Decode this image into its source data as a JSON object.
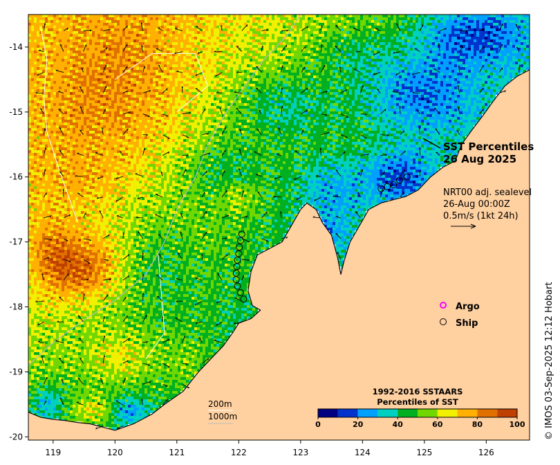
{
  "chart_data": {
    "type": "heatmap",
    "title": "SST Percentiles",
    "date": "26 Aug 2025",
    "xlim": [
      118.6,
      126.7
    ],
    "ylim": [
      -20.05,
      -13.5
    ],
    "x_ticks": [
      119,
      120,
      121,
      122,
      123,
      124,
      125,
      126
    ],
    "y_ticks": [
      -14,
      -15,
      -16,
      -17,
      -18,
      -19,
      -20
    ],
    "current_info": [
      "NRT00 adj. sealevel",
      "26-Aug 00:00Z",
      "0.5m/s (1kt 24h)"
    ],
    "legend": [
      {
        "label": "Argo",
        "symbol": "circle",
        "color": "#ff00ff"
      },
      {
        "label": "Ship",
        "symbol": "circle",
        "color": "#000000"
      }
    ],
    "depth_contours": [
      "200m",
      "1000m"
    ],
    "colorbar": {
      "title": [
        "1992-2016 SSTAARS",
        "Percentiles of SST"
      ],
      "ticks": [
        0,
        20,
        40,
        60,
        80,
        100
      ],
      "colors": [
        "#000080",
        "#0033cc",
        "#00a0ff",
        "#00d0c0",
        "#00b020",
        "#70d800",
        "#f0f000",
        "#ffb000",
        "#e07000",
        "#c04000",
        "#a00000"
      ]
    },
    "ship_track": [
      {
        "lon": 122.05,
        "lat": -16.88
      },
      {
        "lon": 122.03,
        "lat": -16.98
      },
      {
        "lon": 122.01,
        "lat": -17.08
      },
      {
        "lon": 122.0,
        "lat": -17.18
      },
      {
        "lon": 121.98,
        "lat": -17.28
      },
      {
        "lon": 121.97,
        "lat": -17.38
      },
      {
        "lon": 121.96,
        "lat": -17.48
      },
      {
        "lon": 121.96,
        "lat": -17.58
      },
      {
        "lon": 121.98,
        "lat": -17.68
      },
      {
        "lon": 122.03,
        "lat": -17.78
      },
      {
        "lon": 122.08,
        "lat": -17.88
      },
      {
        "lon": 124.3,
        "lat": -16.18
      },
      {
        "lon": 124.4,
        "lat": -16.15
      },
      {
        "lon": 124.5,
        "lat": -16.12
      },
      {
        "lon": 124.6,
        "lat": -16.05
      },
      {
        "lon": 124.72,
        "lat": -16.0
      }
    ],
    "credit": "© IMOS 03-Sep-2025 12:12 Hobart"
  }
}
